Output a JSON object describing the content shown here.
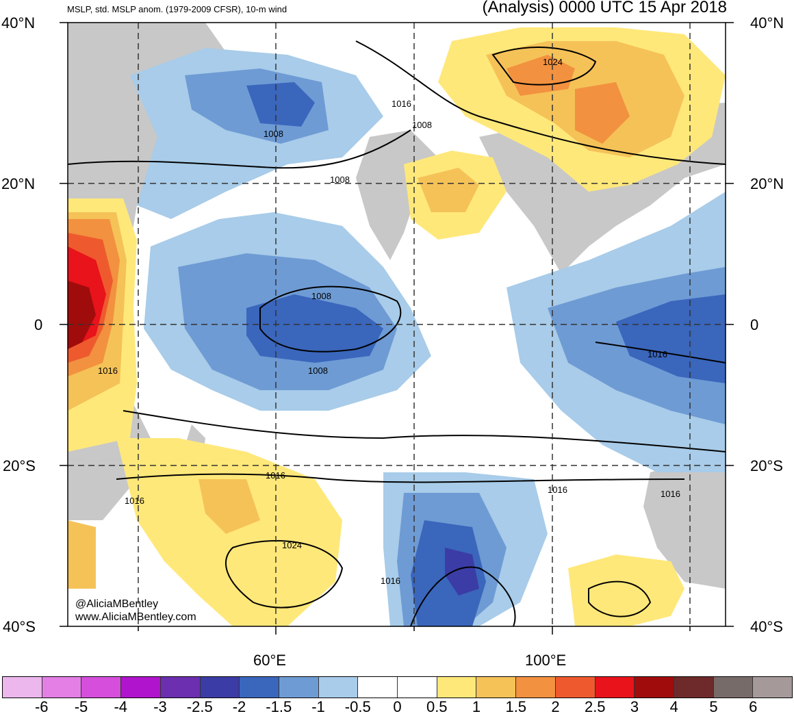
{
  "header": {
    "title_left": "MSLP, std. MSLP anom. (1979-2009 CFSR), 10-m wind",
    "title_right": "(Analysis) 0000 UTC 15 Apr 2018"
  },
  "axes": {
    "lat_left": [
      "40°N",
      "20°N",
      "0",
      "20°S",
      "40°S"
    ],
    "lat_right": [
      "40°N",
      "20°N",
      "0",
      "20°S",
      "40°S"
    ],
    "lon": [
      "60°E",
      "100°E"
    ]
  },
  "contour_labels": [
    "1024",
    "1016",
    "1008",
    "1008",
    "1008",
    "1008",
    "1008",
    "1016",
    "1016",
    "1016",
    "1016",
    "1016",
    "1024",
    "1016"
  ],
  "credit": [
    "@AliciaMBentley",
    "www.AliciaMBentley.com"
  ],
  "colorbar": {
    "colors": [
      "#ebb7ec",
      "#e47fe6",
      "#d64fdc",
      "#b014cc",
      "#6b2fb0",
      "#3c3ca6",
      "#3a66bc",
      "#6e9bd4",
      "#a8cce9",
      "#ffffff",
      "#ffffff",
      "#ffe87a",
      "#f5c258",
      "#f2913f",
      "#ee5a2e",
      "#e8131b",
      "#a00c0c",
      "#6e2a2a",
      "#776b6a",
      "#a59a99"
    ],
    "labels": [
      "-6",
      "-5",
      "-4",
      "-3",
      "-2.5",
      "-2",
      "-1.5",
      "-1",
      "-0.5",
      "0",
      "0.5",
      "1",
      "1.5",
      "2",
      "2.5",
      "3",
      "4",
      "5",
      "6"
    ]
  },
  "fill_colors": {
    "land": "#c8c8c8",
    "neg1": "#a8cce9",
    "neg2": "#6e9bd4",
    "neg3": "#3a66bc",
    "neg4": "#3c3ca6",
    "pos1": "#ffe87a",
    "pos2": "#f5c258",
    "pos3": "#f2913f",
    "pos4": "#ee5a2e",
    "pos5": "#e8131b",
    "pos6": "#a00c0c"
  }
}
